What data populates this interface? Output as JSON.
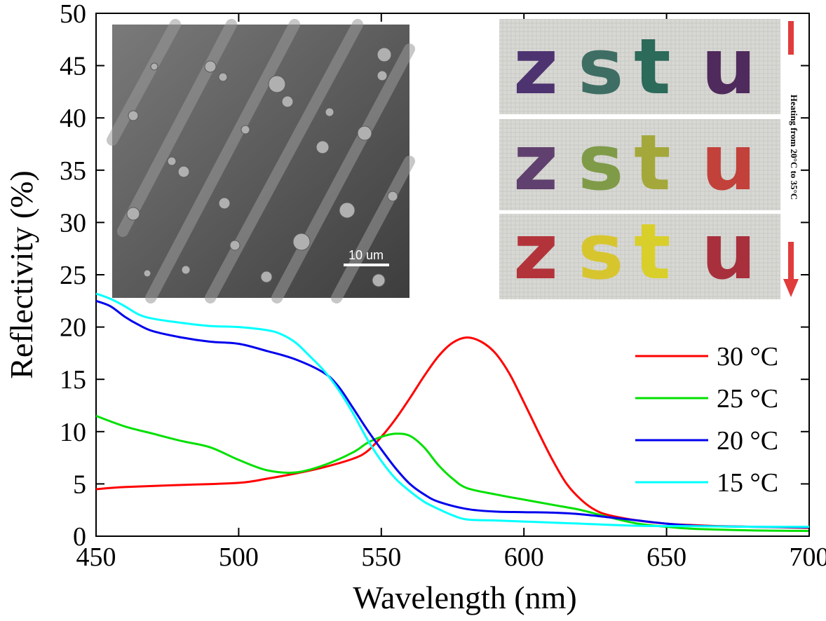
{
  "chart_data": {
    "type": "line",
    "title": "",
    "xlabel": "Wavelength (nm)",
    "ylabel": "Reflectivity (%)",
    "xlim": [
      450,
      700
    ],
    "ylim": [
      0,
      50
    ],
    "xticks": [
      "450",
      "500",
      "550",
      "600",
      "650",
      "700"
    ],
    "yticks": [
      "0",
      "5",
      "10",
      "15",
      "20",
      "25",
      "30",
      "35",
      "40",
      "45",
      "50"
    ],
    "legend_position": "right",
    "series": [
      {
        "name": "30 °C",
        "color": "#ff0000",
        "x": [
          450,
          460,
          480,
          500,
          510,
          520,
          530,
          540,
          545,
          550,
          555,
          560,
          565,
          570,
          575,
          580,
          585,
          590,
          595,
          600,
          605,
          610,
          615,
          620,
          625,
          630,
          640,
          650,
          660,
          670,
          680,
          690,
          700
        ],
        "y": [
          4.5,
          4.7,
          4.9,
          5.1,
          5.5,
          6.0,
          6.6,
          7.4,
          8.1,
          9.5,
          11.2,
          13.2,
          15.3,
          17.2,
          18.5,
          19.0,
          18.6,
          17.5,
          15.5,
          12.8,
          10.0,
          7.3,
          5.0,
          3.5,
          2.5,
          2.0,
          1.5,
          1.2,
          1.05,
          0.95,
          0.9,
          0.85,
          0.8
        ]
      },
      {
        "name": "25 °C",
        "color": "#00e000",
        "x": [
          450,
          460,
          470,
          480,
          490,
          500,
          510,
          520,
          530,
          540,
          545,
          550,
          555,
          560,
          565,
          570,
          575,
          580,
          590,
          600,
          610,
          620,
          630,
          640,
          650,
          660,
          680,
          700
        ],
        "y": [
          11.5,
          10.5,
          9.8,
          9.1,
          8.5,
          7.3,
          6.3,
          6.1,
          6.8,
          8.0,
          8.9,
          9.5,
          9.8,
          9.6,
          8.5,
          6.8,
          5.5,
          4.6,
          4.0,
          3.5,
          3.0,
          2.5,
          1.8,
          1.2,
          0.9,
          0.7,
          0.55,
          0.5
        ]
      },
      {
        "name": "20 °C",
        "color": "#0000ee",
        "x": [
          450,
          455,
          460,
          465,
          470,
          480,
          490,
          500,
          510,
          520,
          530,
          535,
          540,
          545,
          550,
          555,
          560,
          565,
          570,
          580,
          590,
          600,
          610,
          620,
          630,
          640,
          650,
          660,
          680,
          700
        ],
        "y": [
          22.5,
          22.0,
          21.0,
          20.2,
          19.6,
          19.0,
          18.6,
          18.4,
          17.7,
          16.9,
          15.6,
          14.3,
          12.3,
          10.2,
          8.3,
          6.5,
          5.0,
          4.0,
          3.3,
          2.6,
          2.35,
          2.3,
          2.25,
          2.1,
          1.8,
          1.5,
          1.2,
          1.0,
          0.9,
          0.85
        ]
      },
      {
        "name": "15 °C",
        "color": "#00ffff",
        "x": [
          450,
          455,
          460,
          465,
          470,
          480,
          490,
          500,
          510,
          515,
          520,
          525,
          530,
          535,
          540,
          545,
          550,
          555,
          560,
          565,
          570,
          575,
          580,
          590,
          600,
          620,
          640,
          660,
          680,
          700
        ],
        "y": [
          23.2,
          22.7,
          22.0,
          21.2,
          20.8,
          20.4,
          20.1,
          20.0,
          19.7,
          19.3,
          18.5,
          17.2,
          15.8,
          14.0,
          11.8,
          9.3,
          7.2,
          5.5,
          4.3,
          3.3,
          2.6,
          2.0,
          1.6,
          1.5,
          1.4,
          1.2,
          1.0,
          0.95,
          0.9,
          0.9
        ]
      }
    ]
  },
  "insets": {
    "sem": {
      "scale_bar": "10 um"
    },
    "photo": {
      "rows": [
        {
          "word": "zstu",
          "colors": [
            "#4d3470",
            "#3e6e63",
            "#2c6a59",
            "#4f2a5c"
          ]
        },
        {
          "word": "zstu",
          "colors": [
            "#60406e",
            "#7f9b48",
            "#a4a83a",
            "#c2413a"
          ]
        },
        {
          "word": "zstu",
          "colors": [
            "#b2343a",
            "#d7c52e",
            "#d9cf2a",
            "#a8303d"
          ]
        }
      ],
      "heating_label": "Heating from 20°C to 35°C",
      "arrow_color": "#e03c3c"
    }
  }
}
